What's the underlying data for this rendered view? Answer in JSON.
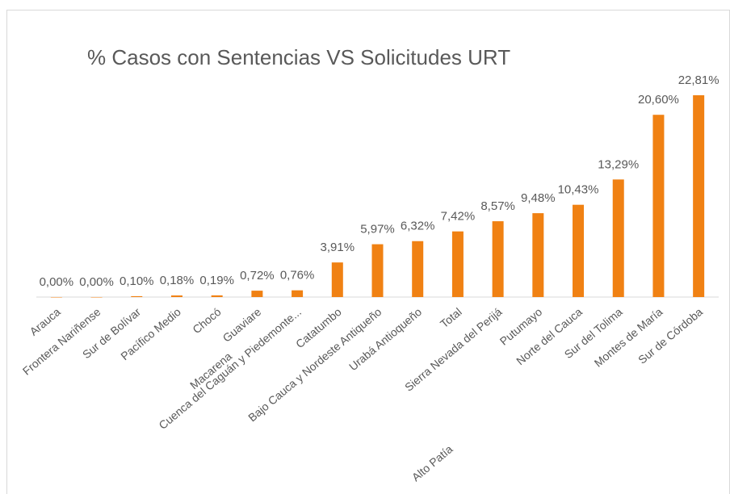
{
  "chart_data": {
    "type": "bar",
    "title": "%  Casos con Sentencias VS Solicitudes URT",
    "categories": [
      "Arauca",
      "Frontera Nariñense",
      "Sur de Bolívar",
      "Pacífico Medio",
      "Chocó",
      "Guaviare",
      "Cuenca del Caguán y Piedemonte...",
      "Catatumbo",
      "Bajo Cauca y Nordeste Antiqueño",
      "Urabá Antioqueño",
      "Total",
      "Sierra Nevada del Perijá",
      "Putumayo",
      "Norte del Cauca",
      "Sur del Tolima",
      "Montes de María",
      "Sur de Córdoba"
    ],
    "label_second_lines": [
      null,
      null,
      null,
      null,
      null,
      null,
      "Macarena",
      null,
      null,
      null,
      null,
      "Alto Patía",
      null,
      null,
      null,
      null,
      null
    ],
    "values": [
      0.0,
      0.0,
      0.1,
      0.18,
      0.19,
      0.72,
      0.76,
      3.91,
      5.97,
      6.32,
      7.42,
      8.57,
      9.48,
      10.43,
      13.29,
      20.6,
      22.81
    ],
    "value_labels": [
      "0,00%",
      "0,00%",
      "0,10%",
      "0,18%",
      "0,19%",
      "0,72%",
      "0,76%",
      "3,91%",
      "5,97%",
      "6,32%",
      "7,42%",
      "8,57%",
      "9,48%",
      "10,43%",
      "13,29%",
      "20,60%",
      "22,81%"
    ],
    "color": "#f08113",
    "ylim": [
      0,
      25
    ]
  }
}
